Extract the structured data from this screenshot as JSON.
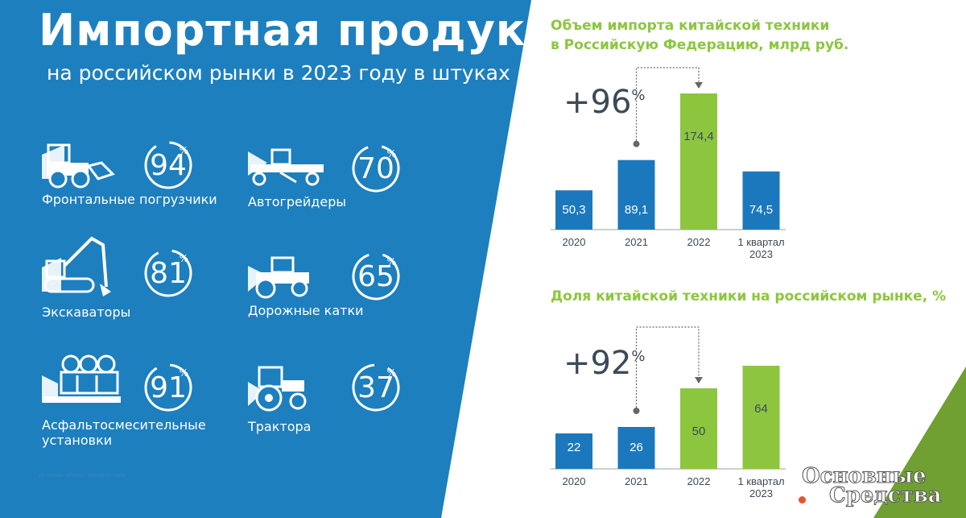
{
  "header": {
    "title": "Импортная продукция",
    "subtitle": "на российском рынки в 2023 году в штуках"
  },
  "colors": {
    "blue_panel": "#1d7fbe",
    "bar_blue": "#1b78bd",
    "bar_green": "#8cc63f",
    "accent_green": "#6fa031",
    "text_dark": "#3c4a57"
  },
  "products": [
    {
      "label": "Фронтальные погрузчики",
      "value": 94,
      "suffix": "%",
      "icon": "wheel-loader-icon"
    },
    {
      "label": "Автогрейдеры",
      "value": 70,
      "suffix": "%",
      "icon": "motor-grader-icon"
    },
    {
      "label": "Экскаваторы",
      "value": 81,
      "suffix": "%",
      "icon": "excavator-icon"
    },
    {
      "label": "Дорожные катки",
      "value": 65,
      "suffix": "%",
      "icon": "road-roller-icon"
    },
    {
      "label": "Асфальтосмесительные установки",
      "label_lines": [
        "Асфальтосмесительные",
        "установки"
      ],
      "value": 91,
      "suffix": "%",
      "icon": "asphalt-plant-icon"
    },
    {
      "label": "Трактора",
      "value": 37,
      "suffix": "%",
      "icon": "tractor-icon"
    }
  ],
  "source_note": "Источник: данные Минпромторга",
  "chart_data": [
    {
      "type": "bar",
      "title": "Объем импорта китайской техники в Российскую Федерацию, млрд руб.",
      "title_lines": [
        "Объем импорта китайской техники",
        "в Российскую Федерацию, млрд руб."
      ],
      "categories": [
        "2020",
        "2021",
        "2022",
        "1 квартал 2023"
      ],
      "category_lines": [
        [
          "2020"
        ],
        [
          "2021"
        ],
        [
          "2022"
        ],
        [
          "1 квартал",
          "2023"
        ]
      ],
      "values": [
        50.3,
        89.1,
        174.4,
        74.5
      ],
      "value_labels": [
        "50,3",
        "89,1",
        "174,4",
        "74,5"
      ],
      "bar_colors": [
        "#1b78bd",
        "#1b78bd",
        "#8cc63f",
        "#1b78bd"
      ],
      "ylim": [
        0,
        174.4
      ],
      "annotation": {
        "value": "+96",
        "suffix": "%",
        "from": "2021",
        "to": "2022"
      },
      "grid": false
    },
    {
      "type": "bar",
      "title": "Доля китайской техники на российском рынке, %",
      "title_lines": [
        "Доля китайской техники на российском рынке, %"
      ],
      "categories": [
        "2020",
        "2021",
        "2022",
        "1 квартал 2023"
      ],
      "category_lines": [
        [
          "2020"
        ],
        [
          "2021"
        ],
        [
          "2022"
        ],
        [
          "1 квартал",
          "2023"
        ]
      ],
      "values": [
        22,
        26,
        50,
        64
      ],
      "value_labels": [
        "22",
        "26",
        "50",
        "64"
      ],
      "bar_colors": [
        "#1b78bd",
        "#1b78bd",
        "#8cc63f",
        "#8cc63f"
      ],
      "ylim": [
        0,
        64
      ],
      "annotation": {
        "value": "+92",
        "suffix": "%",
        "from": "2021",
        "to": "2022"
      },
      "grid": false
    }
  ],
  "logo": {
    "line1": "Основные",
    "line2": "Средства"
  }
}
